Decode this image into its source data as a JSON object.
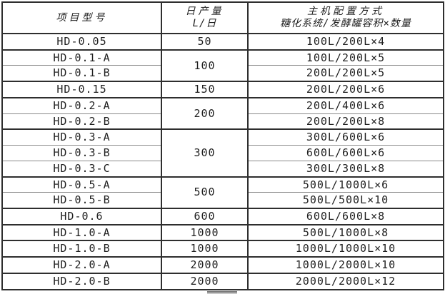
{
  "table": {
    "header": {
      "col1": "项目型号",
      "col2_line1": "日产量",
      "col2_line2": "L/日",
      "col3_line1": "主机配置方式",
      "col3_line2": "糖化系统/发酵罐容积×数量"
    },
    "rows": [
      {
        "model": "HD-0.05",
        "output": "50",
        "output_rowspan": 1,
        "config": "100L/200L×4",
        "group_start": true
      },
      {
        "model": "HD-0.1-A",
        "output": "100",
        "output_rowspan": 2,
        "config": "100L/200L×5",
        "group_start": true
      },
      {
        "model": "HD-0.1-B",
        "config": "200L/200L×5",
        "group_start": false
      },
      {
        "model": "HD-0.15",
        "output": "150",
        "output_rowspan": 1,
        "config": "200L/200L×6",
        "group_start": true
      },
      {
        "model": "HD-0.2-A",
        "output": "200",
        "output_rowspan": 2,
        "config": "200L/400L×6",
        "group_start": true
      },
      {
        "model": "HD-0.2-B",
        "config": "200L/200L×8",
        "group_start": false
      },
      {
        "model": "HD-0.3-A",
        "output": "300",
        "output_rowspan": 3,
        "config": "300L/600L×6",
        "group_start": true
      },
      {
        "model": "HD-0.3-B",
        "config": "600L/600L×6",
        "group_start": false
      },
      {
        "model": "HD-0.3-C",
        "config": "300L/300L×8",
        "group_start": false
      },
      {
        "model": "HD-0.5-A",
        "output": "500",
        "output_rowspan": 2,
        "config": "500L/1000L×6",
        "group_start": true
      },
      {
        "model": "HD-0.5-B",
        "config": "500L/500L×10",
        "group_start": false
      },
      {
        "model": "HD-0.6",
        "output": "600",
        "output_rowspan": 1,
        "config": "600L/600L×8",
        "group_start": true
      },
      {
        "model": "HD-1.0-A",
        "output": "1000",
        "output_rowspan": 1,
        "config": "500L/1000L×8",
        "group_start": true
      },
      {
        "model": "HD-1.0-B",
        "output": "1000",
        "output_rowspan": 1,
        "config": "1000L/1000L×10",
        "group_start": true
      },
      {
        "model": "HD-2.0-A",
        "output": "2000",
        "output_rowspan": 1,
        "config": "1000L/2000L×10",
        "group_start": true
      },
      {
        "model": "HD-2.0-B",
        "output": "2000",
        "output_rowspan": 1,
        "config": "2000L/2000L×12",
        "group_start": true
      }
    ]
  },
  "colors": {
    "border": "#2e2e2e",
    "inner_line": "#8a8a8a",
    "text": "#1f1f1f",
    "background": "#ffffff",
    "fragment_gray": "#7a7a7a"
  }
}
